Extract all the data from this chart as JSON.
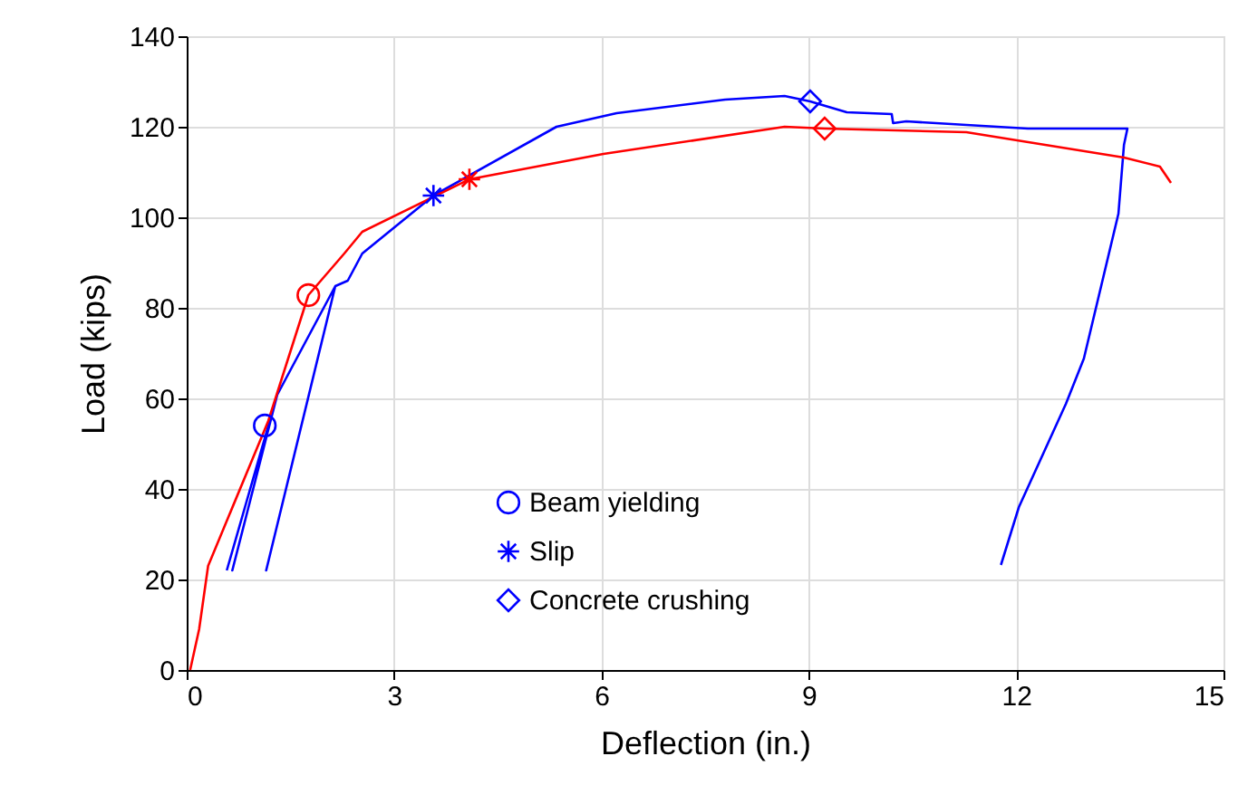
{
  "chart_data": {
    "type": "line",
    "xlabel": "Deflection (in.)",
    "ylabel": "Load (kips)",
    "xlim": [
      0,
      15
    ],
    "xticks": [
      0,
      3,
      6,
      9,
      12,
      15
    ],
    "ylim": [
      0,
      140
    ],
    "yticks": [
      0,
      20,
      40,
      60,
      80,
      100,
      120,
      140
    ],
    "grid": true,
    "legend": "bottom",
    "line_style": "solid",
    "marker": "none",
    "series": [
      {
        "color": "#0000ff",
        "x": [
          0.58,
          1.31,
          0.66,
          1.31,
          2.15,
          1.15,
          2.15,
          2.33,
          2.54,
          3.57,
          5.35,
          6.22,
          7.79,
          8.65,
          9.02,
          9.55,
          10.2,
          10.22,
          10.41,
          12.17,
          13.61,
          13.56,
          13.48,
          12.98,
          12.72,
          12.04,
          11.78
        ],
        "values": [
          22,
          60.8,
          22,
          60.8,
          84.8,
          22,
          84.8,
          86,
          92,
          104.8,
          120,
          123,
          126,
          126.8,
          125.6,
          123.2,
          122.8,
          120.8,
          121.2,
          119.6,
          119.6,
          116,
          100.8,
          68.8,
          58.8,
          36,
          23.2
        ]
      },
      {
        "color": "#ff0000",
        "x": [
          0.05,
          0.18,
          0.31,
          1.18,
          1.76,
          2.28,
          2.54,
          4.09,
          6.03,
          8.65,
          9.23,
          11.28,
          13.56,
          14.08,
          14.24
        ],
        "values": [
          0,
          9,
          23,
          55,
          82.8,
          92,
          96.8,
          108.4,
          114,
          120,
          119.6,
          118.8,
          113.2,
          111.2,
          107.6
        ]
      },
      {
        "type": "scatter",
        "name": "Beam yielding",
        "marker": "circle",
        "color": "#0000ff",
        "colors": [
          "#0000ff",
          "#ff0000"
        ],
        "x": [
          1.13,
          1.76
        ],
        "values": [
          54,
          82.8
        ]
      },
      {
        "type": "scatter",
        "name": "Slip",
        "marker": "cross",
        "color": "#0000ff",
        "colors": [
          "#0000ff",
          "#ff0000"
        ],
        "x": [
          3.57,
          4.09
        ],
        "values": [
          104.8,
          108.4
        ]
      },
      {
        "type": "scatter",
        "name": "Concrete crushing",
        "marker": "diamond",
        "color": "#0000ff",
        "colors": [
          "#0000ff",
          "#ff0000"
        ],
        "x": [
          9.02,
          9.23
        ],
        "values": [
          125.6,
          119.6
        ]
      }
    ]
  }
}
